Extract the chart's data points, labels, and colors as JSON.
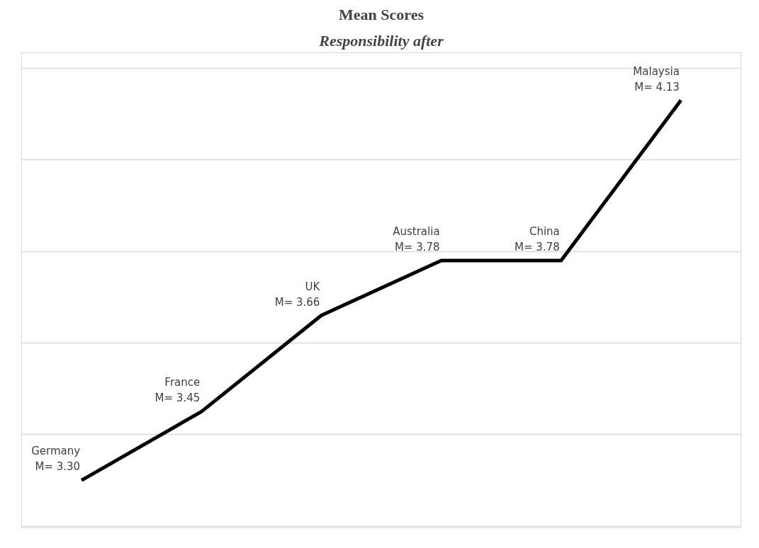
{
  "chart_data": {
    "type": "line",
    "title": "Mean Scores",
    "subtitle": "Responsibility after",
    "categories": [
      null,
      null,
      null,
      null,
      null,
      null
    ],
    "series": [
      {
        "color": "#000000",
        "values": [
          3.3,
          3.45,
          3.66,
          3.78,
          3.78,
          4.13
        ],
        "value_labels": [
          "M= 3.30",
          "M= 3.45",
          "M= 3.66",
          "M= 3.78",
          "M= 3.78",
          "M= 4.13"
        ]
      }
    ],
    "annotations": [
      "Germany",
      "France",
      "UK",
      "Australia",
      "China",
      "Malaysia"
    ],
    "grid": "y",
    "tick_labels": false,
    "line_style": "solid"
  }
}
